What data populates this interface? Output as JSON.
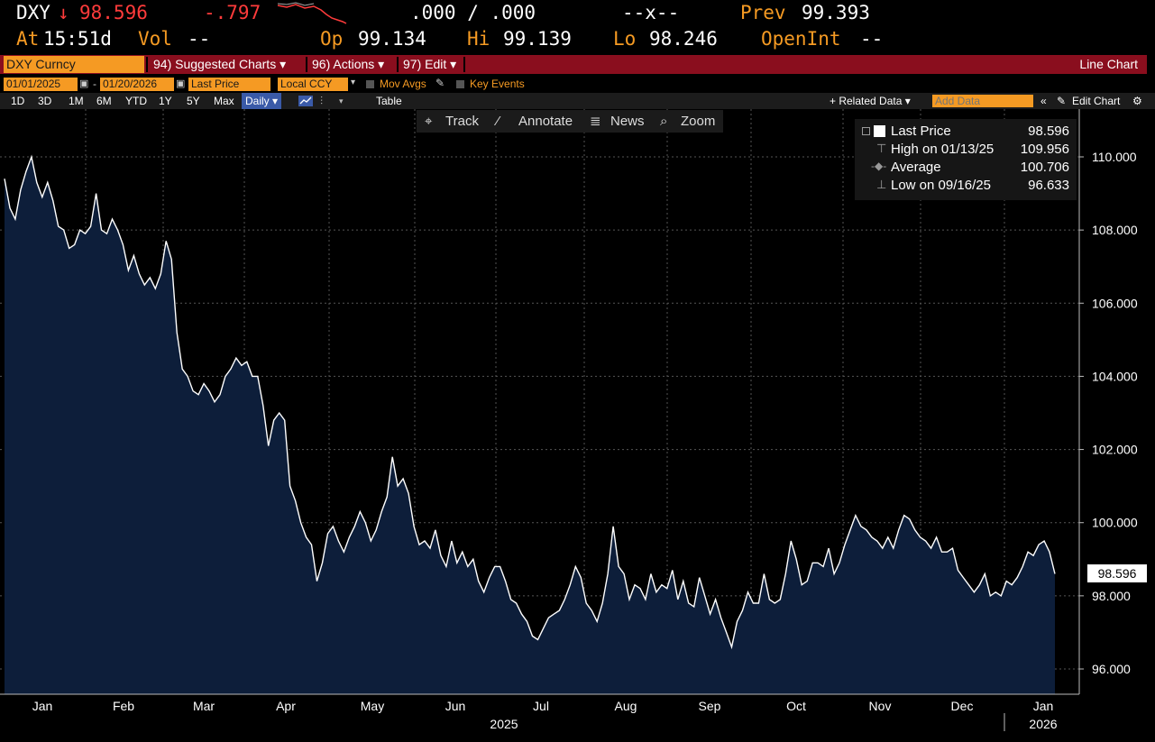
{
  "quote": {
    "ticker": "DXY",
    "arrow": "↓",
    "last": "98.596",
    "change": "-.797",
    "bid_ask": ".000 / .000",
    "size": "--x--",
    "prev_label": "Prev",
    "prev": "99.393",
    "time_label": "At",
    "time": "15:51d",
    "vol_label": "Vol",
    "vol": "--",
    "open_label": "Op",
    "open": "99.134",
    "high_label": "Hi",
    "high": "99.139",
    "low_label": "Lo",
    "low": "98.246",
    "openint_label": "OpenInt",
    "openint": "--"
  },
  "menu": {
    "security": "DXY Curncy",
    "suggested": "94) Suggested Charts ▾",
    "actions": "96) Actions ▾",
    "edit": "97) Edit ▾",
    "chart_type": "Line Chart"
  },
  "controls": {
    "start_date": "01/01/2025",
    "end_date": "01/20/2026",
    "field": "Last Price",
    "currency": "Local CCY",
    "mov_avgs": "Mov Avgs",
    "key_events": "Key Events"
  },
  "ranges": {
    "items": [
      "1D",
      "3D",
      "1M",
      "6M",
      "YTD",
      "1Y",
      "5Y",
      "Max"
    ],
    "frequency": "Daily ▾",
    "table": "Table",
    "related": "+ Related Data ▾",
    "add_data_placeholder": "Add Data",
    "edit_chart": "Edit Chart"
  },
  "toolbar": {
    "track": "Track",
    "annotate": "Annotate",
    "news": "News",
    "zoom": "Zoom"
  },
  "legend": {
    "last_label": "Last Price",
    "last_value": "98.596",
    "high_label": "High on 01/13/25",
    "high_value": "109.956",
    "avg_label": "Average",
    "avg_value": "100.706",
    "low_label": "Low on 09/16/25",
    "low_value": "96.633"
  },
  "colors": {
    "line": "#ffffff",
    "fill": "#0d1e3a",
    "accent": "#f59a23",
    "down": "#ff3b3b",
    "menu": "#8a0e1e"
  },
  "chart_data": {
    "type": "area",
    "ylim": [
      95.2,
      111.2
    ],
    "y_ticks": [
      "96.000",
      "98.000",
      "100.000",
      "102.000",
      "104.000",
      "106.000",
      "108.000",
      "110.000"
    ],
    "y_tick_values": [
      96,
      98,
      100,
      102,
      104,
      106,
      108,
      110
    ],
    "months": [
      "Jan",
      "Feb",
      "Mar",
      "Apr",
      "May",
      "Jun",
      "Jul",
      "Aug",
      "Sep",
      "Oct",
      "Nov",
      "Dec",
      "Jan"
    ],
    "years": [
      "2025",
      "2026"
    ],
    "last_value": "98.596",
    "grid": true,
    "series": [
      {
        "values": [
          109.4,
          108.6,
          108.3,
          109.1,
          109.6,
          110.0,
          109.3,
          108.9,
          109.3,
          108.8,
          108.1,
          108.0,
          107.5,
          107.6,
          108.0,
          107.9,
          108.1,
          109.0,
          108.0,
          107.9,
          108.3,
          108.0,
          107.6,
          106.9,
          107.3,
          106.8,
          106.5,
          106.7,
          106.4,
          106.8,
          107.7,
          107.2,
          105.2,
          104.2,
          104.0,
          103.6,
          103.5,
          103.8,
          103.6,
          103.3,
          103.5,
          104.0,
          104.2,
          104.5,
          104.3,
          104.4,
          104.0,
          104.0,
          103.2,
          102.1,
          102.8,
          103.0,
          102.8,
          101.0,
          100.6,
          100.0,
          99.6,
          99.4,
          98.4,
          98.9,
          99.7,
          99.9,
          99.5,
          99.2,
          99.6,
          99.9,
          100.3,
          100.0,
          99.5,
          99.8,
          100.3,
          100.7,
          101.8,
          101.0,
          101.2,
          100.8,
          99.9,
          99.4,
          99.5,
          99.3,
          99.8,
          99.1,
          98.8,
          99.5,
          98.9,
          99.2,
          98.8,
          99.0,
          98.4,
          98.1,
          98.5,
          98.8,
          98.8,
          98.4,
          97.9,
          97.8,
          97.5,
          97.3,
          96.9,
          96.8,
          97.1,
          97.4,
          97.5,
          97.6,
          97.9,
          98.3,
          98.8,
          98.5,
          97.8,
          97.6,
          97.3,
          97.8,
          98.6,
          99.9,
          98.8,
          98.6,
          97.9,
          98.3,
          98.2,
          97.9,
          98.6,
          98.1,
          98.3,
          98.2,
          98.7,
          97.9,
          98.4,
          97.8,
          97.7,
          98.5,
          98.0,
          97.5,
          97.9,
          97.4,
          97.0,
          96.6,
          97.3,
          97.6,
          98.1,
          97.8,
          97.8,
          98.6,
          97.9,
          97.8,
          97.9,
          98.6,
          99.5,
          99.0,
          98.3,
          98.4,
          98.9,
          98.9,
          98.8,
          99.3,
          98.6,
          98.9,
          99.4,
          99.8,
          100.2,
          99.9,
          99.8,
          99.6,
          99.5,
          99.3,
          99.6,
          99.3,
          99.8,
          100.2,
          100.1,
          99.8,
          99.6,
          99.5,
          99.3,
          99.6,
          99.2,
          99.2,
          99.3,
          98.7,
          98.5,
          98.3,
          98.1,
          98.3,
          98.6,
          98.0,
          98.1,
          98.0,
          98.4,
          98.3,
          98.5,
          98.8,
          99.2,
          99.1,
          99.4,
          99.5,
          99.2,
          98.6
        ]
      }
    ]
  }
}
